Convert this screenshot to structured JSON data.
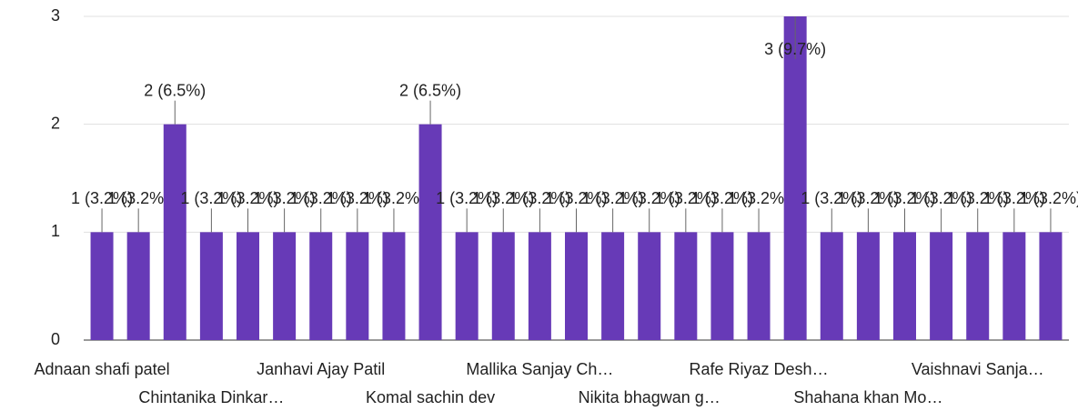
{
  "chart_data": {
    "type": "bar",
    "categories": [
      "Adnaan shafi patel",
      null,
      null,
      "Chintanika Dinkar…",
      null,
      null,
      "Janhavi Ajay Patil",
      null,
      null,
      "Komal sachin dev",
      null,
      null,
      "Mallika Sanjay Ch…",
      null,
      null,
      "Nikita bhagwan g…",
      null,
      null,
      "Rafe Riyaz Desh…",
      null,
      null,
      "Shahana khan Mo…",
      null,
      null,
      "Vaishnavi Sanja…",
      null,
      null
    ],
    "values": [
      1,
      1,
      2,
      1,
      1,
      1,
      1,
      1,
      1,
      2,
      1,
      1,
      1,
      1,
      1,
      1,
      1,
      1,
      1,
      3,
      1,
      1,
      1,
      1,
      1,
      1,
      1
    ],
    "value_labels": [
      "1 (3.2%)",
      "1 (3.2%)",
      "2 (6.5%)",
      "1 (3.2%)",
      "1 (3.2%)",
      "1 (3.2%)",
      "1 (3.2%)",
      "1 (3.2%)",
      "1 (3.2%)",
      "2 (6.5%)",
      "1 (3.2%)",
      "1 (3.2%)",
      "1 (3.2%)",
      "1 (3.2%)",
      "1 (3.2%)",
      "1 (3.2%)",
      "1 (3.2%)",
      "1 (3.2%)",
      "1 (3.2%)",
      "3 (9.7%)",
      "1 (3.2%)",
      "1 (3.2%)",
      "1 (3.2%)",
      "1 (3.2%)",
      "1 (3.2%)",
      "1 (3.2%)",
      "1 (3.2%)"
    ],
    "color": "#673ab7",
    "ylim": [
      0,
      3
    ],
    "yticks": [
      0,
      1,
      2,
      3
    ],
    "grid": true
  }
}
